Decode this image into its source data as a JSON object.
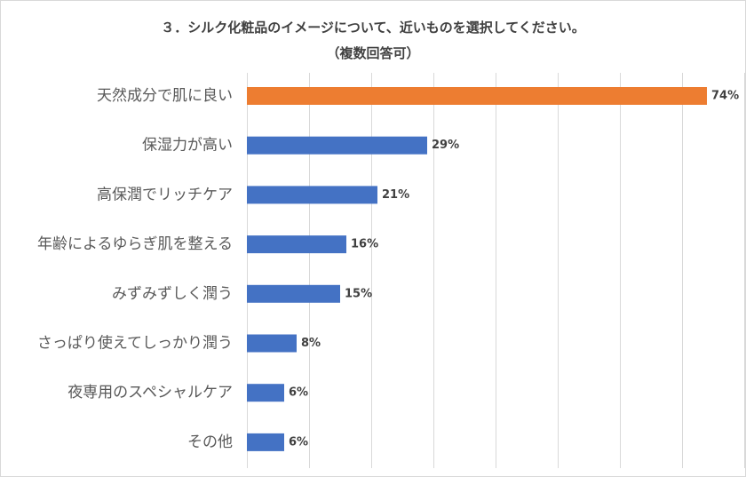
{
  "chart_data": {
    "type": "bar",
    "orientation": "horizontal",
    "title": "３．シルク化粧品のイメージについて、近いものを選択してください。",
    "subtitle": "（複数回答可）",
    "categories": [
      "天然成分で肌に良い",
      "保湿力が高い",
      "高保潤でリッチケア",
      "年齢によるゆらぎ肌を整える",
      "みずみずしく潤う",
      "さっぱり使えてしっかり潤う",
      "夜専用のスペシャルケア",
      "その他"
    ],
    "values": [
      74,
      29,
      21,
      16,
      15,
      8,
      6,
      6
    ],
    "value_labels": [
      "74%",
      "29%",
      "21%",
      "16%",
      "15%",
      "8%",
      "6%",
      "6%"
    ],
    "unit": "%",
    "xlim": [
      0,
      80
    ],
    "grid_step": 10,
    "grid": true,
    "highlight_index": 0,
    "colors": {
      "highlight": "#ED7D31",
      "default": "#4472C4",
      "grid": "#D9D9D9"
    }
  }
}
